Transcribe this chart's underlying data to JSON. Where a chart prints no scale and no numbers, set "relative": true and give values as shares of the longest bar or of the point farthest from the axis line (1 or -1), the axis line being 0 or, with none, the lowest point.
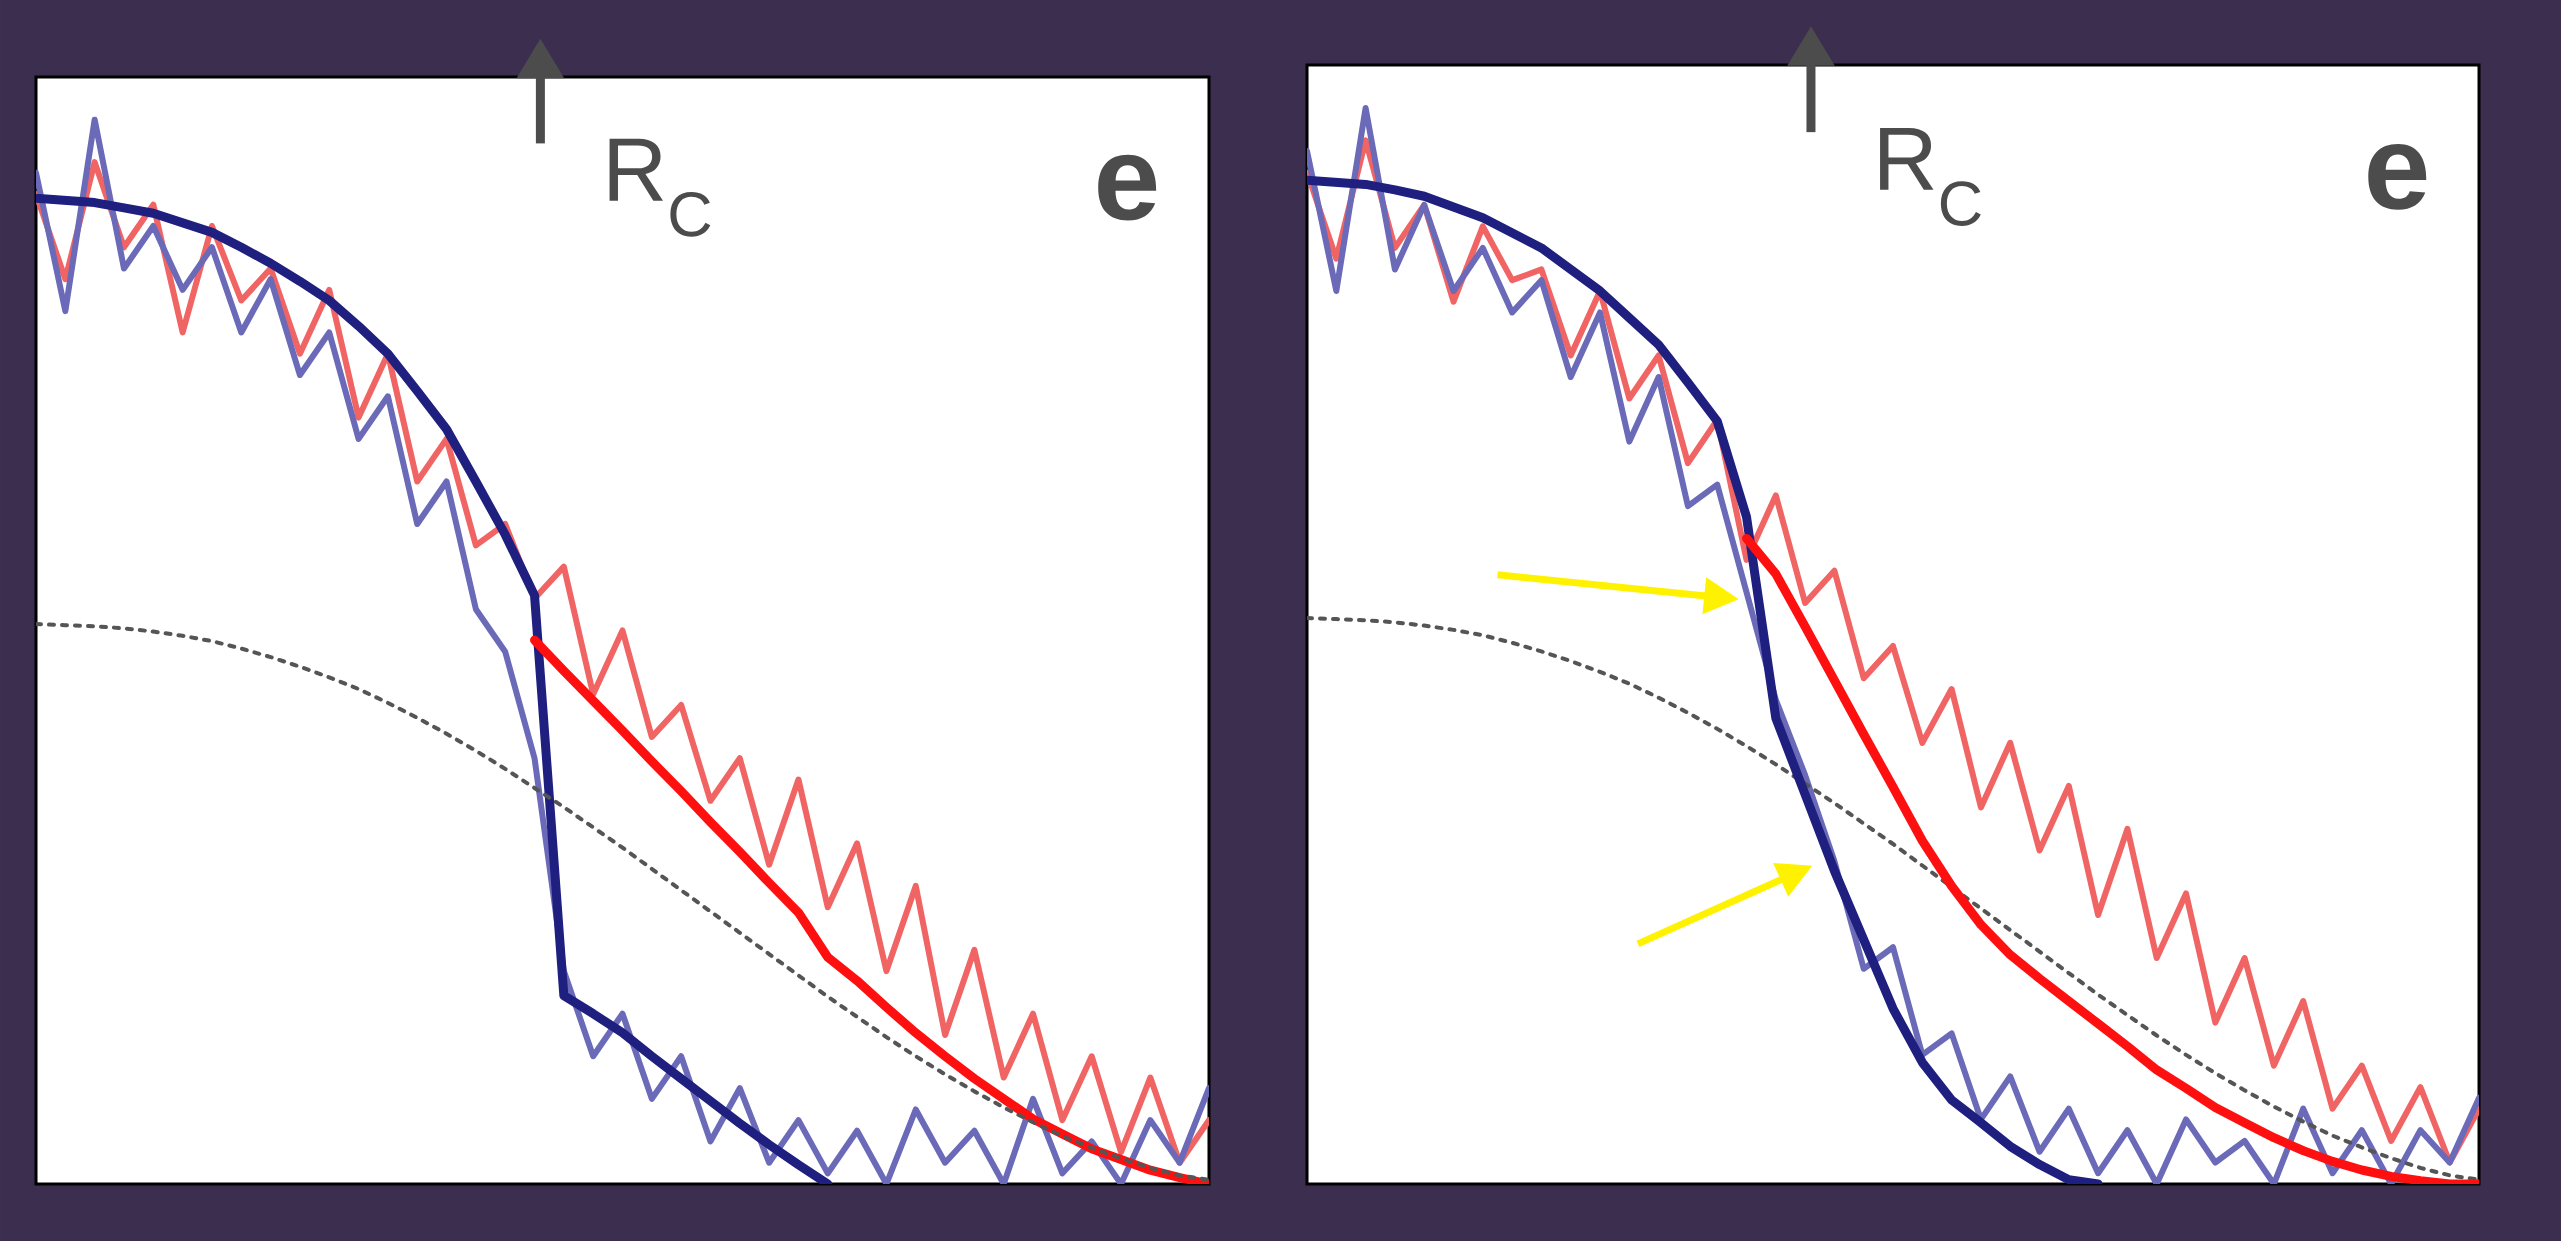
{
  "chart_data": [
    {
      "type": "line",
      "relative": true,
      "categories": [
        null,
        null,
        null,
        null,
        null,
        null,
        null,
        null,
        null,
        null,
        null,
        null,
        null,
        null,
        null,
        null,
        null,
        null,
        null,
        null,
        null,
        null,
        null,
        null,
        null,
        null,
        null,
        null,
        null,
        null,
        null,
        null,
        null,
        null,
        null,
        null,
        null,
        null,
        null,
        null,
        null
      ],
      "annotations": [
        "R$_{C}$",
        "e"
      ],
      "series": [
        {
          "color": "#f06464",
          "values": [
            0.93,
            0.85,
            0.96,
            0.88,
            0.92,
            0.8,
            0.9,
            0.83,
            0.86,
            0.78,
            0.84,
            0.72,
            0.78,
            0.66,
            0.7,
            0.6,
            0.62,
            0.55,
            0.58,
            0.46,
            0.52,
            0.42,
            0.45,
            0.36,
            0.4,
            0.3,
            0.38,
            0.26,
            0.32,
            0.2,
            0.28,
            0.14,
            0.22,
            0.1,
            0.16,
            0.06,
            0.12,
            0.03,
            0.1,
            0.02,
            0.06
          ]
        },
        {
          "color": "#6a6ab8",
          "values": [
            0.95,
            0.82,
            1.0,
            0.86,
            0.9,
            0.84,
            0.88,
            0.8,
            0.85,
            0.76,
            0.8,
            0.7,
            0.74,
            0.62,
            0.66,
            0.54,
            0.5,
            0.4,
            0.2,
            0.12,
            0.16,
            0.08,
            0.12,
            0.04,
            0.09,
            0.02,
            0.06,
            0.01,
            0.05,
            0.0,
            0.07,
            0.02,
            0.05,
            0.0,
            0.08,
            0.01,
            0.04,
            0.0,
            0.06,
            0.02,
            0.09
          ]
        },
        {
          "color": "#1f1f80",
          "values": [
            0.926,
            0.924,
            0.922,
            0.917,
            0.912,
            0.903,
            0.894,
            0.88,
            0.865,
            0.848,
            0.83,
            0.806,
            0.78,
            0.745,
            0.709,
            0.66,
            0.61,
            0.553,
            0.177,
            0.16,
            0.142,
            0.12,
            0.099,
            0.078,
            0.057,
            0.037,
            0.018,
            0.0,
            null,
            null,
            null,
            null,
            null,
            null,
            null,
            null,
            null,
            null,
            null,
            null,
            null
          ]
        },
        {
          "color": "#ff1010",
          "values": [
            null,
            null,
            null,
            null,
            null,
            null,
            null,
            null,
            null,
            null,
            null,
            null,
            null,
            null,
            null,
            null,
            null,
            0.511,
            0.482,
            0.454,
            0.426,
            0.397,
            0.369,
            0.34,
            0.312,
            0.283,
            0.255,
            0.213,
            0.191,
            0.166,
            0.142,
            0.12,
            0.099,
            0.08,
            0.061,
            0.047,
            0.033,
            0.023,
            0.013,
            0.006,
            0.0
          ]
        },
        {
          "color": "#555555",
          "line_style": "dotted",
          "values": [
            0.526,
            0.525,
            0.524,
            0.522,
            0.519,
            0.515,
            0.51,
            0.503,
            0.495,
            0.486,
            0.476,
            0.465,
            0.452,
            0.438,
            0.423,
            0.407,
            0.39,
            0.372,
            0.354,
            0.335,
            0.316,
            0.296,
            0.276,
            0.256,
            0.236,
            0.216,
            0.196,
            0.176,
            0.157,
            0.138,
            0.12,
            0.103,
            0.087,
            0.072,
            0.058,
            0.045,
            0.034,
            0.024,
            0.015,
            0.008,
            0.004
          ]
        }
      ]
    },
    {
      "type": "line",
      "relative": true,
      "categories": [
        null,
        null,
        null,
        null,
        null,
        null,
        null,
        null,
        null,
        null,
        null,
        null,
        null,
        null,
        null,
        null,
        null,
        null,
        null,
        null,
        null,
        null,
        null,
        null,
        null,
        null,
        null,
        null,
        null,
        null,
        null,
        null,
        null,
        null,
        null,
        null,
        null,
        null,
        null,
        null,
        null
      ],
      "annotations": [
        "R$_{C}$",
        "e"
      ],
      "series": [
        {
          "color": "#f06464",
          "values": [
            0.94,
            0.86,
            0.97,
            0.87,
            0.91,
            0.82,
            0.89,
            0.84,
            0.85,
            0.77,
            0.83,
            0.73,
            0.77,
            0.67,
            0.71,
            0.58,
            0.64,
            0.54,
            0.57,
            0.47,
            0.5,
            0.41,
            0.46,
            0.35,
            0.41,
            0.31,
            0.37,
            0.25,
            0.33,
            0.21,
            0.27,
            0.15,
            0.21,
            0.11,
            0.17,
            0.07,
            0.11,
            0.04,
            0.09,
            0.02,
            0.07
          ]
        },
        {
          "color": "#6a6ab8",
          "values": [
            0.96,
            0.83,
            1.0,
            0.85,
            0.91,
            0.83,
            0.87,
            0.81,
            0.84,
            0.75,
            0.81,
            0.69,
            0.75,
            0.63,
            0.65,
            0.55,
            0.45,
            0.38,
            0.3,
            0.2,
            0.22,
            0.12,
            0.14,
            0.06,
            0.1,
            0.03,
            0.07,
            0.01,
            0.05,
            0.0,
            0.06,
            0.02,
            0.04,
            0.0,
            0.07,
            0.01,
            0.05,
            0.0,
            0.05,
            0.02,
            0.08
          ]
        },
        {
          "color": "#555555",
          "line_style": "dotted",
          "values": [
            0.526,
            0.525,
            0.524,
            0.522,
            0.519,
            0.515,
            0.51,
            0.503,
            0.495,
            0.486,
            0.476,
            0.465,
            0.452,
            0.438,
            0.423,
            0.407,
            0.39,
            0.372,
            0.354,
            0.335,
            0.316,
            0.296,
            0.276,
            0.256,
            0.236,
            0.216,
            0.196,
            0.176,
            0.157,
            0.138,
            0.12,
            0.103,
            0.087,
            0.072,
            0.058,
            0.045,
            0.034,
            0.024,
            0.015,
            0.008,
            0.004
          ]
        },
        {
          "color": "#1f1f80",
          "values": [
            0.933,
            0.931,
            0.929,
            0.924,
            0.918,
            0.908,
            0.898,
            0.884,
            0.87,
            0.85,
            0.83,
            0.805,
            0.78,
            0.745,
            0.709,
            0.62,
            0.433,
            0.362,
            0.291,
            0.227,
            0.163,
            0.113,
            0.078,
            0.057,
            0.035,
            0.018,
            0.004,
            0.0,
            null,
            null,
            null,
            null,
            null,
            null,
            null,
            null,
            null,
            null,
            null,
            null,
            null
          ]
        },
        {
          "color": "#ff1010",
          "values": [
            null,
            null,
            null,
            null,
            null,
            null,
            null,
            null,
            null,
            null,
            null,
            null,
            null,
            null,
            null,
            0.6,
            0.567,
            0.518,
            0.468,
            0.418,
            0.369,
            0.319,
            0.277,
            0.241,
            0.213,
            0.191,
            0.17,
            0.149,
            0.128,
            0.106,
            0.089,
            0.071,
            0.057,
            0.043,
            0.031,
            0.021,
            0.013,
            0.007,
            0.003,
            0.0,
            0.0
          ]
        }
      ]
    }
  ]
}
